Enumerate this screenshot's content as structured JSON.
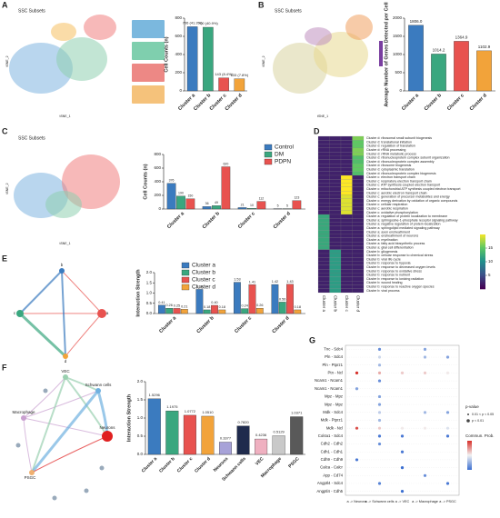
{
  "panel_letters": [
    "A",
    "B",
    "C",
    "D",
    "E",
    "F",
    "G"
  ],
  "embeddings": [
    {
      "title": "SSC Subsets",
      "xlabel": "tSNE_1",
      "ylabel": "tSNE_2"
    },
    {
      "title": "SSC Subsets",
      "xlabel": "tSNE_1",
      "ylabel": "tSNE_2"
    },
    {
      "title": "SSC Subsets",
      "xlabel": "tSNE_1",
      "ylabel": "tSNE_2"
    }
  ],
  "networks": [
    {
      "nodes": [
        "a",
        "b",
        "c",
        "d"
      ]
    },
    {
      "nodes": [
        "Macrophage",
        "VEC",
        "Schwann cells",
        "Neurons",
        "PSGC"
      ]
    }
  ],
  "chart_data": [
    {
      "type": "bar",
      "categories": [
        "Cluster a",
        "Cluster b",
        "Cluster c",
        "Cluster d"
      ],
      "values": [
        706,
        700,
        143,
        133
      ],
      "value_labels": [
        "706 (41.3%)",
        "700 (40.9%)",
        "143 (8.4%)",
        "133 (7.8%)"
      ],
      "colors": [
        "#3b7bbf",
        "#3aa77f",
        "#e8524f",
        "#f2a33a"
      ],
      "ylabel": "Cell Counts (n)",
      "ylim": [
        0,
        800
      ],
      "yticks": [
        0,
        200,
        400,
        600,
        800
      ]
    },
    {
      "type": "bar",
      "categories": [
        "Cluster a",
        "Cluster b",
        "Cluster c",
        "Cluster d"
      ],
      "values": [
        1806,
        1014.2,
        1364.9,
        1102.9
      ],
      "value_labels": [
        "1806.0",
        "1014.2",
        "1364.9",
        "1102.9"
      ],
      "colors": [
        "#3b7bbf",
        "#3aa77f",
        "#e8524f",
        "#f2a33a"
      ],
      "ylabel": "Average Number of Genes Detected per Cell",
      "ylim": [
        0,
        2000
      ],
      "yticks": [
        0,
        500,
        1000,
        1500,
        2000
      ]
    },
    {
      "type": "bar",
      "categories": [
        "Cluster a",
        "Cluster b",
        "Cluster c",
        "Cluster d"
      ],
      "series": [
        {
          "name": "Control",
          "color": "#3b7bbf",
          "values": [
            376,
            36,
            21,
            5
          ]
        },
        {
          "name": "DM",
          "color": "#3aa77f",
          "values": [
            190,
            49,
            10,
            5
          ]
        },
        {
          "name": "PDPN",
          "color": "#e8524f",
          "values": [
            150,
            620,
            112,
            123
          ]
        }
      ],
      "legend": "top-right",
      "ylabel": "Cell Counts (n)",
      "ylim": [
        0,
        800
      ],
      "yticks": [
        0,
        200,
        400,
        600,
        800
      ]
    },
    {
      "type": "heatmap",
      "columns": [
        "Cluster a",
        "Cluster b",
        "Cluster c",
        "Cluster d"
      ],
      "rows": [
        "Cluster d: ribosomal small subunit biogenesis",
        "Cluster d: translational initiation",
        "Cluster d: regulation of translation",
        "Cluster d: rRNA processing",
        "Cluster d: rRNA metabolic process",
        "Cluster d: ribonucleoprotein complex subunit organization",
        "Cluster d: ribonucleoprotein complex assembly",
        "Cluster d: ribosome biogenesis",
        "Cluster d: cytoplasmic translation",
        "Cluster d: ribonucleoprotein complex biogenesis",
        "Cluster c: electron transport chain",
        "Cluster c: respiratory electron transport chain",
        "Cluster c: ATP synthesis coupled electron transport",
        "Cluster c: mitochondrial ATP synthesis coupled electron transport",
        "Cluster c: aerobic electron transport chain",
        "Cluster c: generation of precursor metabolites and energy",
        "Cluster c: energy derivation by oxidation of organic compounds",
        "Cluster c: cellular respiration",
        "Cluster c: aerobic respiration",
        "Cluster c: oxidative phosphorylation",
        "Cluster a: regulation of protein localization to membrane",
        "Cluster a: sphingosine-1-phosphate receptor signaling pathway",
        "Cluster a: negative regulation of protein localization",
        "Cluster a: sphingolipid mediated signaling pathway",
        "Cluster a: axon ensheathment",
        "Cluster a: ensheathment of neurons",
        "Cluster a: myelination",
        "Cluster a: fatty acid biosynthetic process",
        "Cluster a: glial cell differentiation",
        "Cluster b: gliogenesis",
        "Cluster b: cellular response to chemical stress",
        "Cluster b: viral life cycle",
        "Cluster b: response to hypoxia",
        "Cluster b: response to decreased oxygen levels",
        "Cluster b: response to oxidative stress",
        "Cluster b: response to nutrient",
        "Cluster b: response to ionizing radiation",
        "Cluster b: wound healing",
        "Cluster b: response to reactive oxygen species",
        "Cluster b: viral process"
      ],
      "values": [
        [
          2,
          2,
          2,
          16
        ],
        [
          2,
          2,
          2,
          15
        ],
        [
          2,
          2,
          2,
          15
        ],
        [
          2,
          2,
          2,
          16
        ],
        [
          2,
          2,
          2,
          16
        ],
        [
          2,
          2,
          2,
          14
        ],
        [
          2,
          2,
          2,
          14
        ],
        [
          2,
          2,
          2,
          15
        ],
        [
          2,
          2,
          2,
          15
        ],
        [
          2,
          2,
          2,
          14
        ],
        [
          2,
          2,
          20,
          2
        ],
        [
          2,
          2,
          20,
          2
        ],
        [
          2,
          2,
          20,
          2
        ],
        [
          2,
          2,
          20,
          2
        ],
        [
          2,
          2,
          20,
          2
        ],
        [
          2,
          2,
          19,
          2
        ],
        [
          2,
          2,
          19,
          2
        ],
        [
          2,
          2,
          19,
          2
        ],
        [
          2,
          2,
          19,
          2
        ],
        [
          2,
          2,
          19,
          2
        ],
        [
          12,
          2,
          2,
          2
        ],
        [
          12,
          2,
          2,
          2
        ],
        [
          12,
          2,
          2,
          2
        ],
        [
          12,
          2,
          2,
          2
        ],
        [
          12,
          2,
          2,
          2
        ],
        [
          12,
          2,
          2,
          2
        ],
        [
          12,
          2,
          2,
          2
        ],
        [
          12,
          2,
          2,
          2
        ],
        [
          12,
          2,
          2,
          2
        ],
        [
          2,
          11,
          2,
          2
        ],
        [
          2,
          11,
          2,
          2
        ],
        [
          2,
          11,
          2,
          2
        ],
        [
          2,
          11,
          2,
          2
        ],
        [
          2,
          11,
          2,
          2
        ],
        [
          2,
          11,
          2,
          2
        ],
        [
          2,
          11,
          2,
          2
        ],
        [
          2,
          11,
          2,
          2
        ],
        [
          2,
          11,
          2,
          2
        ],
        [
          2,
          11,
          2,
          2
        ],
        [
          2,
          11,
          2,
          2
        ]
      ],
      "highlighted": [
        21,
        23,
        27
      ],
      "highlight_color": "#e0201b",
      "zlim": [
        0,
        20
      ],
      "zticks": [
        5,
        10,
        15
      ]
    },
    {
      "type": "bar",
      "categories": [
        "Cluster a",
        "Cluster b",
        "Cluster c",
        "Cluster d"
      ],
      "series": [
        {
          "name": "Cluster a",
          "color": "#3b7bbf",
          "values": [
            0.41,
            1.18,
            1.53,
            1.42
          ],
          "value_labels": [
            "0.41",
            "1.18",
            "1.53",
            "1.42"
          ]
        },
        {
          "name": "Cluster b",
          "color": "#3aa77f",
          "values": [
            0.26,
            0.18,
            0.24,
            0.56
          ],
          "value_labels": [
            "0.26",
            "0.18",
            "0.24",
            "0.56"
          ]
        },
        {
          "name": "Cluster c",
          "color": "#e8524f",
          "values": [
            0.25,
            0.4,
            1.41,
            1.43
          ],
          "value_labels": [
            "0.25",
            "0.40",
            "1.41",
            "1.43"
          ]
        },
        {
          "name": "Cluster d",
          "color": "#f2a33a",
          "values": [
            0.21,
            0.18,
            0.26,
            0.18
          ],
          "value_labels": [
            "0.21",
            "0.18",
            "0.26",
            "0.18"
          ]
        }
      ],
      "legend": "top-left",
      "ylabel": "Interaction Strength",
      "ylim": [
        0,
        2
      ],
      "yticks": [
        {
          "value": 0,
          "label": "0.0"
        },
        0.5,
        {
          "value": 1,
          "label": "1.0"
        },
        1.5,
        {
          "value": 2,
          "label": "2.0"
        }
      ]
    },
    {
      "type": "bar",
      "categories": [
        "Cluster a",
        "Cluster b",
        "Cluster c",
        "Cluster d",
        "Neurons",
        "Schwann cells",
        "VEC",
        "Macrophage",
        "PSGC"
      ],
      "values": [
        1.5296,
        1.1975,
        1.0772,
        1.051,
        0.3377,
        0.782,
        0.4236,
        0.5129,
        1.0371
      ],
      "value_labels": [
        "1.5296",
        "1.1975",
        "1.0772",
        "1.0510",
        "0.3377",
        "0.7820",
        "0.4236",
        "0.5129",
        "1.0371"
      ],
      "colors": [
        "#3b7bbf",
        "#3aa77f",
        "#e8524f",
        "#f2a33a",
        "#a7a2d8",
        "#1f2b4d",
        "#efb0c0",
        "#c9c9c9",
        "#595959"
      ],
      "ylabel": "Interaction Strength",
      "ylim": [
        0,
        2
      ],
      "yticks": [
        {
          "value": 0,
          "label": "0.0"
        },
        0.5,
        {
          "value": 1,
          "label": "1.0"
        },
        1.5,
        {
          "value": 2,
          "label": "2.0"
        }
      ]
    },
    {
      "type": "dot",
      "columns": [
        "a -> Neurons",
        "a -> Schwann cells",
        "a -> VEC",
        "a -> Macrophage",
        "a -> PSGC"
      ],
      "rows": [
        "Tnc - Sdc4",
        "Pln - Sdc4",
        "Pln - Ptprz1",
        "Ptn - Ncl",
        "Ncam1 - Ncam1",
        "Ncam1 - Ncam1",
        "Mpz - Mpz",
        "Mpz - Mpz",
        "Mdk - Sdc4",
        "Mdk - Ptprz1",
        "Mdk - Ncl",
        "Col4a1 - Sdc4",
        "Cdh2 - Cdh2",
        "Cdh1 - Cdh1",
        "Cdh9 - Cdh9",
        "Calca - Calcr",
        "App - Cd74",
        "Angptl4 - Sdc4",
        "Angptl4 - Cdh5"
      ],
      "values": [
        [
          null,
          0.08,
          null,
          0.1,
          null
        ],
        [
          null,
          0.15,
          null,
          0.12,
          0.1
        ],
        [
          null,
          0.12,
          null,
          null,
          null
        ],
        [
          0.3,
          0.22,
          0.2,
          0.2,
          0.18
        ],
        [
          null,
          0.08,
          null,
          null,
          null
        ],
        [
          0.1,
          null,
          null,
          null,
          null
        ],
        [
          null,
          0.1,
          null,
          null,
          null
        ],
        [
          null,
          0.1,
          null,
          null,
          null
        ],
        [
          null,
          0.14,
          null,
          0.12,
          0.1
        ],
        [
          null,
          0.12,
          null,
          null,
          null
        ],
        [
          0.28,
          0.2,
          0.18,
          0.18,
          0.16
        ],
        [
          null,
          0.06,
          0.06,
          null,
          0.06
        ],
        [
          null,
          0.08,
          null,
          null,
          null
        ],
        [
          null,
          null,
          0.06,
          null,
          null
        ],
        [
          0.06,
          null,
          null,
          null,
          null
        ],
        [
          null,
          null,
          0.05,
          null,
          null
        ],
        [
          null,
          null,
          null,
          0.08,
          null
        ],
        [
          null,
          0.07,
          null,
          null,
          0.06
        ],
        [
          null,
          null,
          0.05,
          null,
          null
        ]
      ],
      "highlighted": [
        3,
        10
      ],
      "highlight_color": "#e0201b",
      "size_title": "p-value",
      "size_labels": [
        "0.01 < p < 0.05",
        "p < 0.01"
      ],
      "color_title": "Commun. Prob."
    }
  ]
}
